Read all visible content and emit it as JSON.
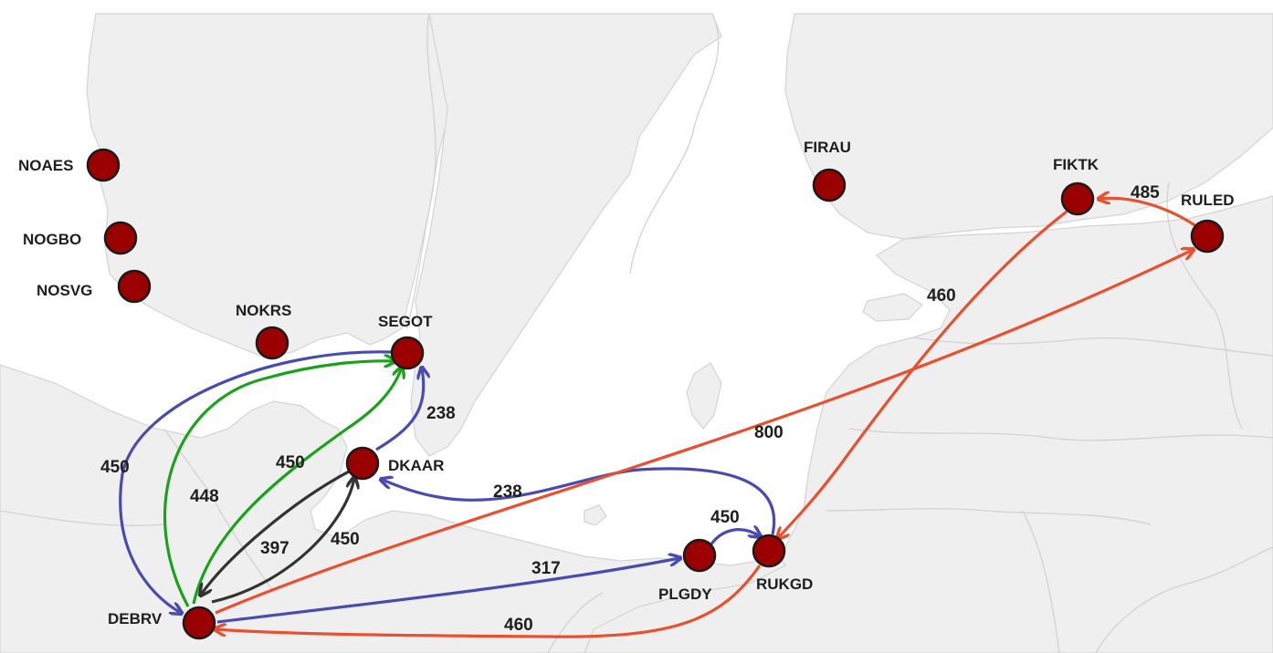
{
  "colors": {
    "sea": "#ffffff",
    "land": "#efefef",
    "port_fill": "#9b0000",
    "blue": "#4a4bb0",
    "green": "#1aa31a",
    "dark": "#333333",
    "red": "#e8502f"
  },
  "ports": [
    {
      "id": "NOAES",
      "label": "NOAES"
    },
    {
      "id": "NOGBO",
      "label": "NOGBO"
    },
    {
      "id": "NOSVG",
      "label": "NOSVG"
    },
    {
      "id": "NOKRS",
      "label": "NOKRS"
    },
    {
      "id": "SEGOT",
      "label": "SEGOT"
    },
    {
      "id": "DKAAR",
      "label": "DKAAR"
    },
    {
      "id": "DEBRV",
      "label": "DEBRV"
    },
    {
      "id": "PLGDY",
      "label": "PLGDY"
    },
    {
      "id": "RUKGD",
      "label": "RUKGD"
    },
    {
      "id": "FIRAU",
      "label": "FIRAU"
    },
    {
      "id": "FIKTK",
      "label": "FIKTK"
    },
    {
      "id": "RULED",
      "label": "RULED"
    }
  ],
  "routes": [
    {
      "id": "segot-debrv",
      "from": "SEGOT",
      "to": "DEBRV",
      "value": "450",
      "color": "blue"
    },
    {
      "id": "debrv-segot",
      "from": "DEBRV",
      "to": "SEGOT",
      "value": "448",
      "color": "green"
    },
    {
      "id": "debrv-segot-2",
      "from": "DEBRV",
      "to": "SEGOT",
      "value": "450",
      "color": "green"
    },
    {
      "id": "dkaar-segot",
      "from": "DKAAR",
      "to": "SEGOT",
      "value": "238",
      "color": "blue"
    },
    {
      "id": "dkaar-debrv",
      "from": "DKAAR",
      "to": "DEBRV",
      "value": "397",
      "color": "dark"
    },
    {
      "id": "debrv-dkaar",
      "from": "DEBRV",
      "to": "DKAAR",
      "value": "450",
      "color": "dark"
    },
    {
      "id": "rukgd-dkaar",
      "from": "RUKGD",
      "to": "DKAAR",
      "value": "238",
      "color": "blue"
    },
    {
      "id": "debrv-plgdy",
      "from": "DEBRV",
      "to": "PLGDY",
      "value": "317",
      "color": "blue"
    },
    {
      "id": "plgdy-rukgd",
      "from": "PLGDY",
      "to": "RUKGD",
      "value": "450",
      "color": "blue"
    },
    {
      "id": "rukgd-debrv",
      "from": "RUKGD",
      "to": "DEBRV",
      "value": "460",
      "color": "red"
    },
    {
      "id": "debrv-ruled",
      "from": "DEBRV",
      "to": "RULED",
      "value": "800",
      "color": "red"
    },
    {
      "id": "fiktk-rukgd",
      "from": "FIKTK",
      "to": "RUKGD",
      "value": "460",
      "color": "red"
    },
    {
      "id": "ruled-fiktk",
      "from": "RULED",
      "to": "FIKTK",
      "value": "485",
      "color": "red"
    }
  ]
}
